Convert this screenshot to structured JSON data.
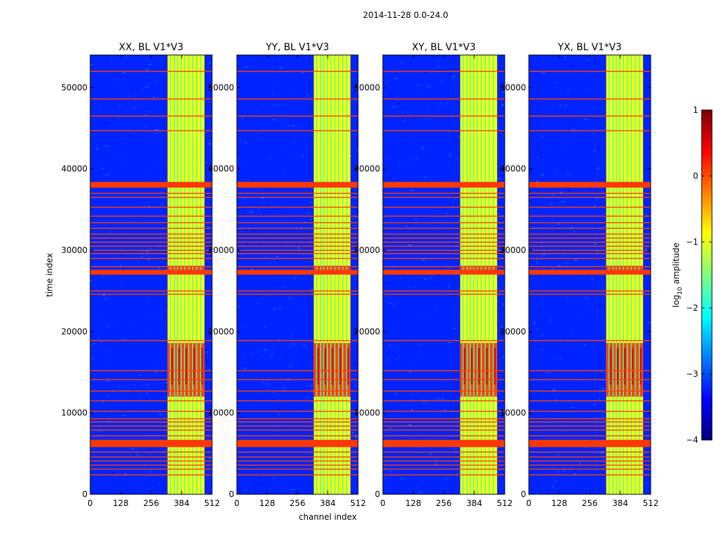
{
  "chart_data": {
    "type": "heatmap",
    "suptitle": "2014-11-28 0.0-24.0",
    "xlabel": "channel index",
    "ylabel": "time index",
    "xlim": [
      0,
      512
    ],
    "ylim": [
      0,
      54000
    ],
    "xticks": [
      0,
      128,
      256,
      384,
      512
    ],
    "yticks": [
      0,
      10000,
      20000,
      30000,
      40000,
      50000
    ],
    "colorbar": {
      "label_prefix": "log",
      "label_sub": "10",
      "label_suffix": " amplitude",
      "ticks": [
        1,
        0,
        -1,
        -2,
        -3,
        -4
      ],
      "tick_labels": [
        "1",
        "0",
        "−1",
        "−2",
        "−3",
        "−4"
      ],
      "range": [
        -4,
        1
      ],
      "colormap": "jet",
      "colors": [
        "#00007f",
        "#0000ff",
        "#007fff",
        "#00ffff",
        "#7fff7f",
        "#ffff00",
        "#ff7f00",
        "#ff0000",
        "#7f0000"
      ]
    },
    "panels": [
      {
        "title": "XX, BL V1*V3"
      },
      {
        "title": "YY, BL V1*V3"
      },
      {
        "title": "XY, BL V1*V3"
      },
      {
        "title": "YX, BL V1*V3"
      }
    ],
    "features": {
      "background_log_amplitude": -3.2,
      "rfi_channel_band": [
        325,
        480
      ],
      "rfi_channel_columns": [
        335,
        352,
        365,
        380,
        395,
        412,
        428,
        445,
        462
      ],
      "thick_flag_rows": [
        [
          37700,
          38400
        ],
        [
          27000,
          27600
        ],
        [
          5800,
          6700
        ]
      ],
      "flag_rows": [
        2400,
        3100,
        3600,
        4100,
        4600,
        5200,
        7200,
        7900,
        8400,
        8900,
        9300,
        10200,
        11500,
        12700,
        14100,
        15200,
        18900,
        24600,
        25000,
        28000,
        29000,
        29600,
        30000,
        30500,
        31000,
        31500,
        32000,
        32700,
        33400,
        34200,
        35300,
        36500,
        37000,
        44700,
        46500,
        48600,
        52000
      ],
      "strong_rows": [
        [
          27300,
          28100
        ],
        [
          12000,
          18600
        ]
      ]
    }
  }
}
